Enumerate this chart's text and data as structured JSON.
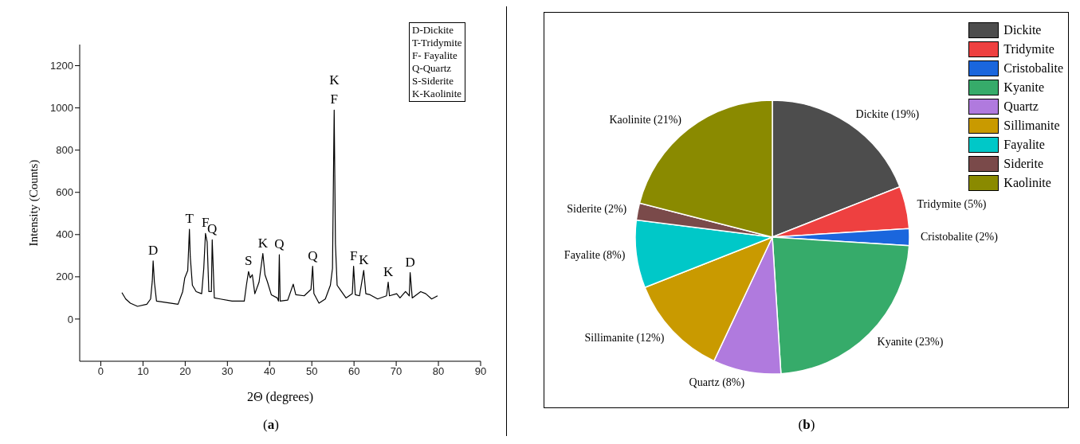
{
  "chart_data": [
    {
      "type": "line",
      "title": "(a)",
      "xlabel": "2Θ (degrees)",
      "ylabel": "Intensity (Counts)",
      "x": [
        5,
        5.9,
        7,
        8.7,
        10.9,
        11.8,
        12.2,
        12.4,
        12.7,
        13.2,
        14.8,
        18.3,
        19.4,
        19.9,
        20.6,
        21,
        21.2,
        21.7,
        22.6,
        23.9,
        24.4,
        24.8,
        25.2,
        25.6,
        26.2,
        26.4,
        26.9,
        28.3,
        31.1,
        34,
        34.5,
        35,
        35.4,
        35.9,
        36.5,
        37.5,
        38.4,
        38.9,
        39.5,
        40.4,
        41.8,
        42.1,
        42.3,
        42.5,
        44.3,
        45.6,
        46.2,
        48.2,
        49.8,
        50.2,
        50.5,
        51.7,
        53.2,
        54.4,
        54.9,
        55.3,
        55.6,
        56,
        56.7,
        58.1,
        59.6,
        59.9,
        60.3,
        61.3,
        62.3,
        62.8,
        63.8,
        65.6,
        67.7,
        68.1,
        68.4,
        70.1,
        70.9,
        72.2,
        73.1,
        73.3,
        73.8,
        75.8,
        77,
        78.4,
        79.8
      ],
      "series": [
        {
          "color": "#000000",
          "values": [
            125,
            95,
            75,
            60,
            70,
            95,
            180,
            275,
            175,
            85,
            80,
            70,
            130,
            195,
            230,
            425,
            295,
            160,
            130,
            120,
            240,
            405,
            365,
            130,
            130,
            375,
            100,
            95,
            85,
            85,
            160,
            225,
            195,
            210,
            120,
            175,
            310,
            210,
            175,
            115,
            100,
            85,
            305,
            85,
            90,
            165,
            115,
            110,
            140,
            250,
            120,
            75,
            95,
            160,
            240,
            990,
            355,
            160,
            140,
            100,
            120,
            250,
            115,
            110,
            230,
            120,
            115,
            95,
            110,
            175,
            110,
            120,
            100,
            130,
            110,
            220,
            100,
            130,
            120,
            95,
            110
          ]
        }
      ],
      "xlim": [
        -5,
        90
      ],
      "xticks": [
        0,
        10,
        20,
        30,
        40,
        50,
        60,
        70,
        80,
        90
      ],
      "ylim": [
        -200,
        1300
      ],
      "yticks": [
        0,
        200,
        400,
        600,
        800,
        1000,
        1200
      ],
      "grid": false,
      "marker": "none",
      "line_style": "solid",
      "annotations": [
        {
          "text": "D",
          "x": 12.4,
          "y": 275
        },
        {
          "text": "T",
          "x": 21,
          "y": 425
        },
        {
          "text": "F",
          "x": 24.8,
          "y": 405
        },
        {
          "text": "Q",
          "x": 26.4,
          "y": 375
        },
        {
          "text": "S",
          "x": 35,
          "y": 225
        },
        {
          "text": "K",
          "x": 38.4,
          "y": 310
        },
        {
          "text": "Q",
          "x": 42.3,
          "y": 305
        },
        {
          "text": "Q",
          "x": 50.2,
          "y": 250
        },
        {
          "text": "F",
          "x": 55.3,
          "y": 990
        },
        {
          "text": "K",
          "x": 55.3,
          "y": 990
        },
        {
          "text": "F",
          "x": 59.9,
          "y": 250
        },
        {
          "text": "K",
          "x": 62.3,
          "y": 230
        },
        {
          "text": "K",
          "x": 68.1,
          "y": 175
        },
        {
          "text": "D",
          "x": 73.3,
          "y": 220
        },
        "D-Dickite",
        "T-Tridymite",
        "F- Fayalite",
        "Q-Quartz",
        "S-Siderite",
        "K-Kaolinite"
      ]
    },
    {
      "type": "pie",
      "title": "(b)",
      "categories": [
        "Dickite",
        "Tridymite",
        "Cristobalite",
        "Kyanite",
        "Quartz",
        "Sillimanite",
        "Fayalite",
        "Siderite",
        "Kaolinite"
      ],
      "values": [
        19,
        5,
        2,
        23,
        8,
        12,
        8,
        2,
        21
      ],
      "colors": [
        "#4d4d4d",
        "#ee4040",
        "#1a66dd",
        "#36ab6a",
        "#b07ade",
        "#c99a00",
        "#00c8c8",
        "#7a4a4a",
        "#8a8a00"
      ],
      "value_labels": [
        "Dickite (19%)",
        "Tridymite (5%)",
        "Cristobalite (2%)",
        "Kyanite (23%)",
        "Quartz (8%)",
        "Sillimanite (12%)",
        "Fayalite (8%)",
        "Siderite (2%)",
        "Kaolinite (21%)"
      ],
      "legend": "top right"
    }
  ]
}
